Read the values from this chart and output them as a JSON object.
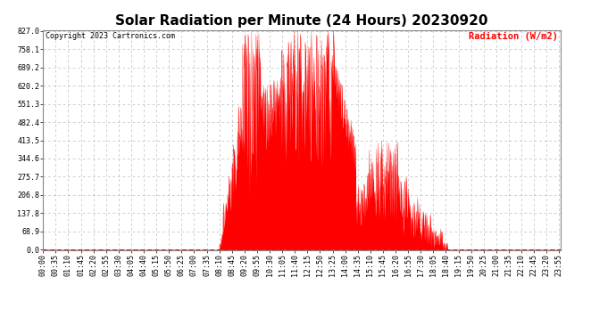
{
  "title": "Solar Radiation per Minute (24 Hours) 20230920",
  "ylabel": "Radiation (W/m2)",
  "ylabel_color": "#ff0000",
  "copyright_text": "Copyright 2023 Cartronics.com",
  "background_color": "#ffffff",
  "plot_bg_color": "#ffffff",
  "fill_color": "#ff0000",
  "line_color": "#ff0000",
  "baseline_color": "#ff0000",
  "grid_color": "#bbbbbb",
  "ytick_labels": [
    "0.0",
    "68.9",
    "137.8",
    "206.8",
    "275.7",
    "344.6",
    "413.5",
    "482.4",
    "551.3",
    "620.2",
    "689.2",
    "758.1",
    "827.0"
  ],
  "ytick_values": [
    0.0,
    68.9,
    137.8,
    206.8,
    275.7,
    344.6,
    413.5,
    482.4,
    551.3,
    620.2,
    689.2,
    758.1,
    827.0
  ],
  "ymax": 827.0,
  "ymin": 0.0,
  "title_fontsize": 11,
  "label_fontsize": 7.5,
  "tick_fontsize": 6,
  "tick_interval_minutes": 35
}
